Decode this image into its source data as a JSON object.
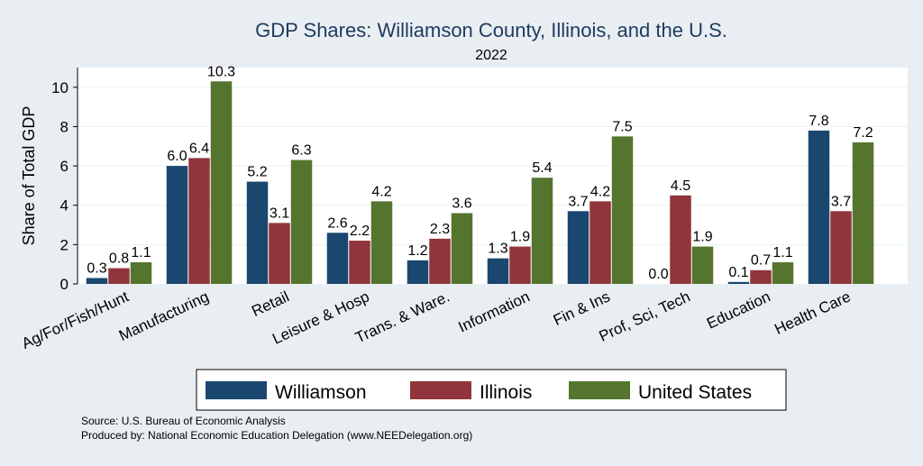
{
  "chart_data": {
    "type": "bar",
    "title": "GDP Shares: Williamson County, Illinois, and the U.S.",
    "subtitle": "2022",
    "ylabel": "Share of Total GDP",
    "xlabel": "",
    "ylim": [
      0,
      11
    ],
    "yticks": [
      "0",
      "2",
      "4",
      "6",
      "8",
      "10"
    ],
    "grid": true,
    "legend_position": "bottom",
    "categories": [
      "Ag/For/Fish/Hunt",
      "Manufacturing",
      "Retail",
      "Leisure & Hosp",
      "Trans. & Ware.",
      "Information",
      "Fin & Ins",
      "Prof, Sci, Tech",
      "Education",
      "Health Care"
    ],
    "series": [
      {
        "name": "Williamson",
        "color": "#1a476f",
        "values": [
          0.3,
          6.0,
          5.2,
          2.6,
          1.2,
          1.3,
          3.7,
          0.0,
          0.1,
          7.8
        ],
        "labels": [
          "0.3",
          "6.0",
          "5.2",
          "2.6",
          "1.2",
          "1.3",
          "3.7",
          "0.0",
          "0.1",
          "7.8"
        ]
      },
      {
        "name": "Illinois",
        "color": "#90353b",
        "values": [
          0.8,
          6.4,
          3.1,
          2.2,
          2.3,
          1.9,
          4.2,
          4.5,
          0.7,
          3.7
        ],
        "labels": [
          "0.8",
          "6.4",
          "3.1",
          "2.2",
          "2.3",
          "1.9",
          "4.2",
          "4.5",
          "0.7",
          "3.7"
        ]
      },
      {
        "name": "United States",
        "color": "#55752f",
        "values": [
          1.1,
          10.3,
          6.3,
          4.2,
          3.6,
          5.4,
          7.5,
          1.9,
          1.1,
          7.2
        ],
        "labels": [
          "1.1",
          "10.3",
          "6.3",
          "4.2",
          "3.6",
          "5.4",
          "7.5",
          "1.9",
          "1.1",
          "7.2"
        ]
      }
    ]
  },
  "footer": {
    "source": "Source: U.S. Bureau of Economic Analysis",
    "produced_by": "Produced by: National Economic Education Delegation (www.NEEDelegation.org)"
  }
}
